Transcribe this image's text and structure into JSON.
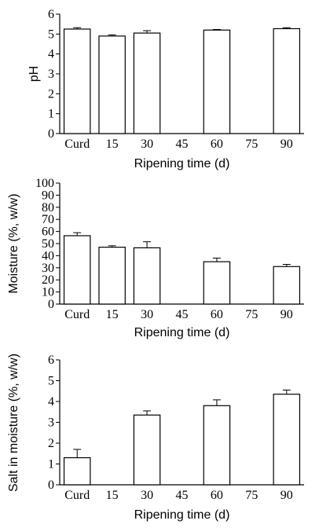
{
  "chart_data": [
    {
      "type": "bar",
      "title": "",
      "xlabel": "Ripening time (d)",
      "ylabel": "pH",
      "ylim": [
        0,
        6
      ],
      "yticks": [
        "0",
        "1",
        "2",
        "3",
        "4",
        "5",
        "6"
      ],
      "categories": [
        "Curd",
        "15",
        "30",
        "45",
        "60",
        "75",
        "90"
      ],
      "values": [
        5.25,
        4.9,
        5.05,
        null,
        5.2,
        null,
        5.27
      ],
      "errors": [
        0.07,
        0.06,
        0.12,
        null,
        0.03,
        null,
        0.05
      ]
    },
    {
      "type": "bar",
      "title": "",
      "xlabel": "Ripening time (d)",
      "ylabel": "Moisture (%, w/w)",
      "ylim": [
        0,
        100
      ],
      "yticks": [
        "0",
        "10",
        "20",
        "30",
        "40",
        "50",
        "60",
        "70",
        "80",
        "90",
        "100"
      ],
      "categories": [
        "Curd",
        "15",
        "30",
        "45",
        "60",
        "75",
        "90"
      ],
      "values": [
        56.5,
        47,
        46.5,
        null,
        35,
        null,
        31
      ],
      "errors": [
        2.5,
        1.2,
        5,
        null,
        3,
        null,
        1.8
      ]
    },
    {
      "type": "bar",
      "title": "",
      "xlabel": "Ripening time (d)",
      "ylabel": "Salt in moisture (%, w/w)",
      "ylim": [
        0,
        6
      ],
      "yticks": [
        "0",
        "1",
        "2",
        "3",
        "4",
        "5",
        "6"
      ],
      "categories": [
        "Curd",
        "15",
        "30",
        "45",
        "60",
        "75",
        "90"
      ],
      "values": [
        1.3,
        null,
        3.35,
        null,
        3.8,
        null,
        4.35
      ],
      "errors": [
        0.4,
        null,
        0.2,
        null,
        0.28,
        null,
        0.2
      ]
    }
  ]
}
